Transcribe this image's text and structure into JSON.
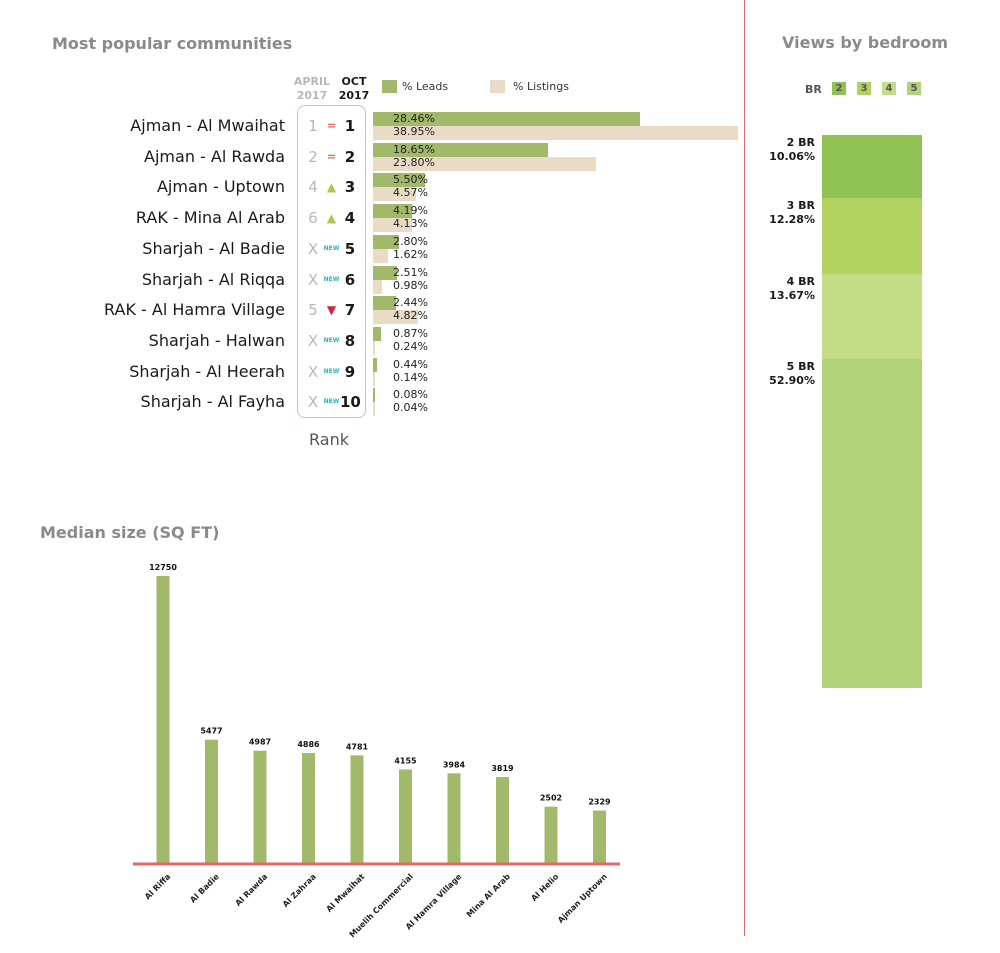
{
  "communities": {
    "title": "Most popular communities",
    "col_april_line1": "APRIL",
    "col_april_line2": "2017",
    "col_oct_line1": "OCT",
    "col_oct_line2": "2017",
    "legend_leads": "% Leads",
    "legend_listings": "% Listings",
    "rank_caption": "Rank",
    "colors": {
      "leads": "#a2b86a",
      "listings": "#eadbc7",
      "up": "#b7c44b",
      "down": "#d8213c",
      "new": "#2fb3b3",
      "equal": "#e26a5a"
    },
    "rows": [
      {
        "name": "Ajman - Al Mwaihat",
        "prev": "1",
        "indicator": "=",
        "indicator_type": "eq",
        "rank": "1",
        "leads": 28.46,
        "leads_label": "28.46%",
        "listings": 38.95,
        "listings_label": "38.95%"
      },
      {
        "name": "Ajman - Al Rawda",
        "prev": "2",
        "indicator": "=",
        "indicator_type": "eq",
        "rank": "2",
        "leads": 18.65,
        "leads_label": "18.65%",
        "listings": 23.8,
        "listings_label": "23.80%"
      },
      {
        "name": "Ajman - Uptown",
        "prev": "4",
        "indicator": "▲",
        "indicator_type": "up",
        "rank": "3",
        "leads": 5.5,
        "leads_label": "5.50%",
        "listings": 4.57,
        "listings_label": "4.57%"
      },
      {
        "name": "RAK - Mina Al Arab",
        "prev": "6",
        "indicator": "▲",
        "indicator_type": "up",
        "rank": "4",
        "leads": 4.19,
        "leads_label": "4.19%",
        "listings": 4.13,
        "listings_label": "4.13%"
      },
      {
        "name": "Sharjah - Al Badie",
        "prev": "X",
        "indicator": "NEW",
        "indicator_type": "new",
        "rank": "5",
        "leads": 2.8,
        "leads_label": "2.80%",
        "listings": 1.62,
        "listings_label": "1.62%"
      },
      {
        "name": "Sharjah - Al Riqqa",
        "prev": "X",
        "indicator": "NEW",
        "indicator_type": "new",
        "rank": "6",
        "leads": 2.51,
        "leads_label": "2.51%",
        "listings": 0.98,
        "listings_label": "0.98%"
      },
      {
        "name": "RAK - Al Hamra Village",
        "prev": "5",
        "indicator": "▼",
        "indicator_type": "down",
        "rank": "7",
        "leads": 2.44,
        "leads_label": "2.44%",
        "listings": 4.82,
        "listings_label": "4.82%"
      },
      {
        "name": "Sharjah - Halwan",
        "prev": "X",
        "indicator": "NEW",
        "indicator_type": "new",
        "rank": "8",
        "leads": 0.87,
        "leads_label": "0.87%",
        "listings": 0.24,
        "listings_label": "0.24%"
      },
      {
        "name": "Sharjah - Al Heerah",
        "prev": "X",
        "indicator": "NEW",
        "indicator_type": "new",
        "rank": "9",
        "leads": 0.44,
        "leads_label": "0.44%",
        "listings": 0.14,
        "listings_label": "0.14%"
      },
      {
        "name": "Sharjah - Al Fayha",
        "prev": "X",
        "indicator": "NEW",
        "indicator_type": "new",
        "rank": "10",
        "leads": 0.08,
        "leads_label": "0.08%",
        "listings": 0.04,
        "listings_label": "0.04%"
      }
    ]
  },
  "bedroom": {
    "title": "Views by bedroom",
    "key_label": "BR",
    "keys": [
      "2",
      "3",
      "4",
      "5"
    ],
    "segments": [
      {
        "name": "2 BR",
        "value": 10.06,
        "label": "10.06%",
        "color": "#90c155"
      },
      {
        "name": "3 BR",
        "value": 12.28,
        "label": "12.28%",
        "color": "#b2d260"
      },
      {
        "name": "4 BR",
        "value": 13.67,
        "label": "13.67%",
        "color": "#c4dc86"
      },
      {
        "name": "5 BR",
        "value": 52.9,
        "label": "52.90%",
        "color": "#b1d47b"
      }
    ]
  },
  "chart_data": {
    "type": "bar",
    "title": "Median size (SQ FT)",
    "xlabel": "",
    "ylabel": "",
    "categories": [
      "Al Riffa",
      "Al Badie",
      "Al Rawda",
      "Al Zahraa",
      "Al Mwaihat",
      "Muelih Commercial",
      "Al Hamra Village",
      "Mina Al Arab",
      "Al Helio",
      "Ajman Uptown"
    ],
    "values": [
      12750,
      5477,
      4987,
      4886,
      4781,
      4155,
      3984,
      3819,
      2502,
      2329
    ],
    "value_labels": [
      "12750",
      "5477",
      "4987",
      "4886",
      "4781",
      "4155",
      "3984",
      "3819",
      "2502",
      "2329"
    ],
    "ylim": [
      0,
      12750
    ],
    "grid": false,
    "colors": {
      "bar": "#a2b86a",
      "baseline": "#e06a6a"
    }
  }
}
